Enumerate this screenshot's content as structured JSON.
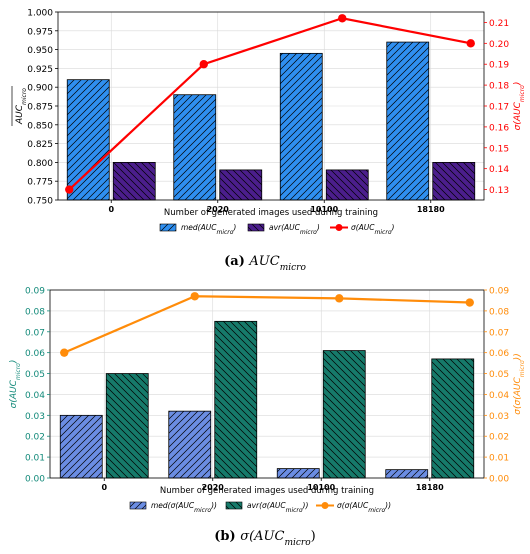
{
  "colors": {
    "blue_bar": "#2f8ff0",
    "purple_bar": "#4b1e8c",
    "red_line": "#ff0000",
    "light_blue_bar": "#6b8de3",
    "teal_bar": "#167a6a",
    "orange_line": "#ff8c0a",
    "teal_axis": "#138a7a",
    "orange_axis": "#ff8c0a"
  },
  "chart_data": [
    {
      "type": "bar",
      "panel": "a",
      "caption_label": "(a)",
      "caption_text": "AUC",
      "caption_sub": "micro",
      "xlabel": "Number of generated images used during training",
      "ylabel_left": "AUC",
      "ylabel_left_sub": "micro",
      "ylabel_right": "σ(AUC",
      "ylabel_right_sub": "micro",
      "ylabel_right_tail": ")",
      "categories": [
        "0",
        "2020",
        "10100",
        "18180"
      ],
      "ylim_left": [
        0.75,
        1.0
      ],
      "yticks_left": [
        "0.750",
        "0.775",
        "0.800",
        "0.825",
        "0.850",
        "0.875",
        "0.900",
        "0.925",
        "0.950",
        "0.975",
        "1.000"
      ],
      "ylim_right": [
        0.125,
        0.215
      ],
      "yticks_right": [
        "0.13",
        "0.14",
        "0.15",
        "0.16",
        "0.17",
        "0.18",
        "0.19",
        "0.20",
        "0.21"
      ],
      "grid": true,
      "legend_position": "below",
      "series": [
        {
          "name": "med(AUC",
          "name_sub": "micro",
          "name_tail": ")",
          "kind": "bar",
          "axis": "left",
          "values": [
            0.91,
            0.89,
            0.945,
            0.96
          ]
        },
        {
          "name": "avr(AUC",
          "name_sub": "micro",
          "name_tail": ")",
          "kind": "bar",
          "axis": "left",
          "values": [
            0.8,
            0.79,
            0.79,
            0.8
          ]
        },
        {
          "name": "σ(AUC",
          "name_sub": "micro",
          "name_tail": ")",
          "kind": "line",
          "axis": "right",
          "values": [
            0.13,
            0.19,
            0.212,
            0.2
          ]
        }
      ]
    },
    {
      "type": "bar",
      "panel": "b",
      "caption_label": "(b)",
      "caption_text": "σ(AUC",
      "caption_sub": "micro",
      "caption_tail": ")",
      "xlabel": "Number of generated images used during training",
      "ylabel_left": "σ(AUC",
      "ylabel_left_sub": "micro",
      "ylabel_left_tail": ")",
      "ylabel_right": "σ(σ(AUC",
      "ylabel_right_sub": "micro",
      "ylabel_right_tail": "))",
      "categories": [
        "0",
        "2020",
        "10100",
        "18180"
      ],
      "ylim_left": [
        0.0,
        0.09
      ],
      "yticks_left": [
        "0.00",
        "0.01",
        "0.02",
        "0.03",
        "0.04",
        "0.05",
        "0.06",
        "0.07",
        "0.08",
        "0.09"
      ],
      "ylim_right": [
        0.0,
        0.09
      ],
      "yticks_right": [
        "0.00",
        "0.01",
        "0.02",
        "0.03",
        "0.04",
        "0.05",
        "0.06",
        "0.07",
        "0.08",
        "0.09"
      ],
      "grid": true,
      "legend_position": "below",
      "series": [
        {
          "name": "med(σ(AUC",
          "name_sub": "micro",
          "name_tail": "))",
          "kind": "bar",
          "axis": "left",
          "values": [
            0.03,
            0.032,
            0.0045,
            0.004
          ]
        },
        {
          "name": "avr(σ(AUC",
          "name_sub": "micro",
          "name_tail": "))",
          "kind": "bar",
          "axis": "left",
          "values": [
            0.05,
            0.075,
            0.061,
            0.057
          ]
        },
        {
          "name": "σ(σ(AUC",
          "name_sub": "micro",
          "name_tail": "))",
          "kind": "line",
          "axis": "right",
          "values": [
            0.06,
            0.087,
            0.086,
            0.084
          ]
        }
      ]
    }
  ]
}
